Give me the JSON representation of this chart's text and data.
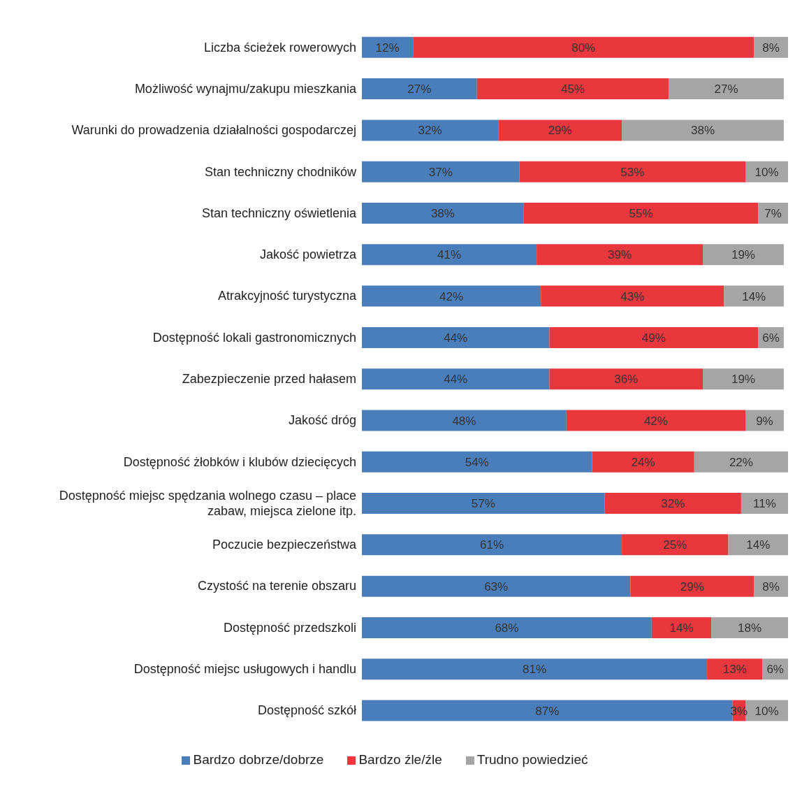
{
  "chart_data": {
    "type": "bar",
    "orientation": "horizontal",
    "stacked": true,
    "categories": [
      "Liczba ścieżek rowerowych",
      "Możliwość wynajmu/zakupu mieszkania",
      "Warunki do prowadzenia działalności gospodarczej",
      "Stan techniczny chodników",
      "Stan techniczny oświetlenia",
      "Jakość powietrza",
      "Atrakcyjność turystyczna",
      "Dostępność lokali gastronomicznych",
      "Zabezpieczenie przed hałasem",
      "Jakość dróg",
      "Dostępność żłobków i klubów dziecięcych",
      "Dostępność miejsc spędzania wolnego czasu – place zabaw, miejsca zielone itp.",
      "Poczucie bezpieczeństwa",
      "Czystość na terenie obszaru",
      "Dostępność przedszkoli",
      "Dostępność miejsc usługowych i handlu",
      "Dostępność szkół"
    ],
    "series": [
      {
        "name": "Bardzo dobrze/dobrze",
        "color": "#4a7ebb",
        "values": [
          12,
          27,
          32,
          37,
          38,
          41,
          42,
          44,
          44,
          48,
          54,
          57,
          61,
          63,
          68,
          81,
          87
        ],
        "value_labels": [
          "12%",
          "27%",
          "32%",
          "37%",
          "38%",
          "41%",
          "42%",
          "44%",
          "44%",
          "48%",
          "54%",
          "57%",
          "61%",
          "63%",
          "68%",
          "81%",
          "87%"
        ]
      },
      {
        "name": "Bardzo źle/źle",
        "color": "#e8383d",
        "values": [
          80,
          45,
          29,
          53,
          55,
          39,
          43,
          49,
          36,
          42,
          24,
          32,
          25,
          29,
          14,
          13,
          3
        ],
        "value_labels": [
          "80%",
          "45%",
          "29%",
          "53%",
          "55%",
          "39%",
          "43%",
          "49%",
          "36%",
          "42%",
          "24%",
          "32%",
          "25%",
          "29%",
          "14%",
          "13%",
          "3%"
        ]
      },
      {
        "name": "Trudno powiedzieć",
        "color": "#a5a5a5",
        "values": [
          8,
          27,
          38,
          10,
          7,
          19,
          14,
          6,
          19,
          9,
          22,
          11,
          14,
          8,
          18,
          6,
          10
        ],
        "value_labels": [
          "8%",
          "27%",
          "38%",
          "10%",
          "7%",
          "19%",
          "14%",
          "6%",
          "19%",
          "9%",
          "22%",
          "11%",
          "14%",
          "8%",
          "18%",
          "6%",
          "10%"
        ]
      }
    ],
    "xlim": [
      0,
      100
    ],
    "tick_labels": "y",
    "legend": "bottom"
  }
}
